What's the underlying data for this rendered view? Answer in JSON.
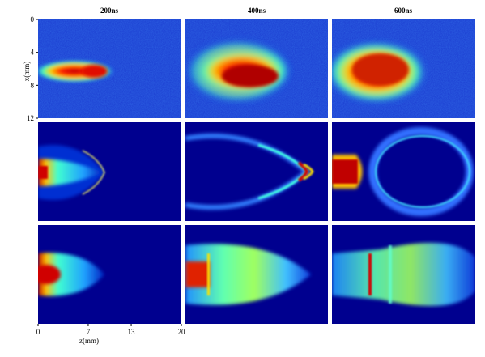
{
  "columns": [
    "200ns",
    "400ns",
    "600ns"
  ],
  "y_axis": {
    "label": "x(mm)",
    "lim": [
      0,
      12
    ],
    "ticks": [
      0,
      4,
      8,
      12
    ]
  },
  "x_axis": {
    "label": "z(mm)",
    "lim": [
      0,
      20
    ],
    "ticks": [
      0,
      7,
      13,
      20
    ]
  }
}
